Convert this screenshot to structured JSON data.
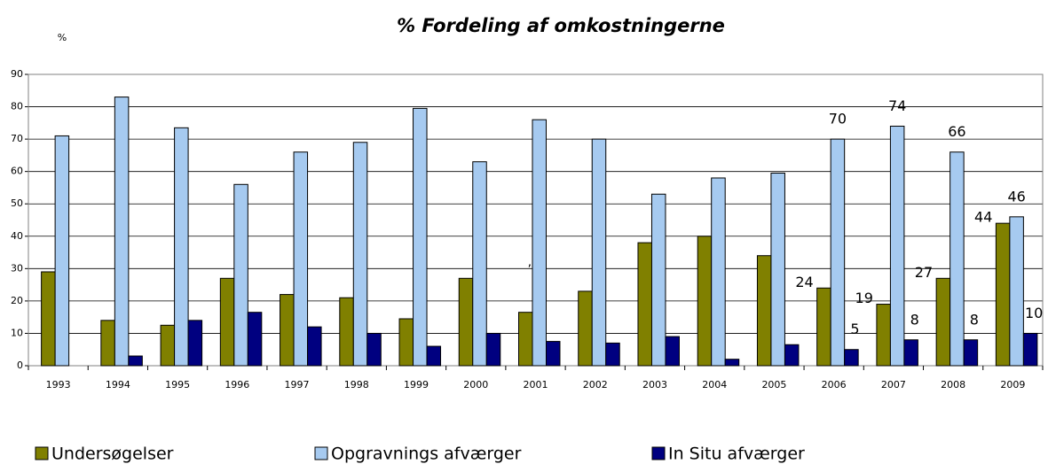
{
  "chart_data": {
    "type": "bar",
    "title": "%  Fordeling af omkostningerne",
    "y_label": "%",
    "annotation": "’",
    "categories": [
      "1993",
      "1994",
      "1995",
      "1996",
      "1997",
      "1998",
      "1999",
      "2000",
      "2001",
      "2002",
      "2003",
      "2004",
      "2005",
      "2006",
      "2007",
      "2008",
      "2009"
    ],
    "series": [
      {
        "name": "Undersøgelser",
        "color": "#808000",
        "values": [
          29,
          14,
          12.5,
          27,
          22,
          21,
          14.5,
          27,
          16.5,
          23,
          38,
          40,
          34,
          24,
          19,
          27,
          44
        ],
        "value_labels": [
          null,
          null,
          null,
          null,
          null,
          null,
          null,
          null,
          null,
          null,
          null,
          null,
          null,
          "24",
          "19",
          "27",
          "44"
        ]
      },
      {
        "name": "Opgravnings afværger",
        "color": "#a6caf0",
        "values": [
          71,
          83,
          73.5,
          56,
          66,
          69,
          79.5,
          63,
          76,
          70,
          53,
          58,
          59.5,
          70,
          74,
          66,
          46
        ],
        "value_labels": [
          null,
          null,
          null,
          null,
          null,
          null,
          null,
          null,
          null,
          null,
          null,
          null,
          null,
          "70",
          "74",
          "66",
          "46"
        ]
      },
      {
        "name": "In Situ afværger",
        "color": "#000080",
        "values": [
          0,
          3,
          14,
          16.5,
          12,
          10,
          6,
          10,
          7.5,
          7,
          9,
          2,
          6.5,
          5,
          8,
          8,
          10
        ],
        "value_labels": [
          null,
          null,
          null,
          null,
          null,
          null,
          null,
          null,
          null,
          null,
          null,
          null,
          null,
          "5",
          "8",
          "8",
          "10"
        ]
      }
    ],
    "ylim": [
      0,
      90
    ],
    "yticks": [
      0,
      10,
      20,
      30,
      40,
      50,
      60,
      70,
      80,
      90
    ],
    "grid": true,
    "legend": "bottom"
  }
}
